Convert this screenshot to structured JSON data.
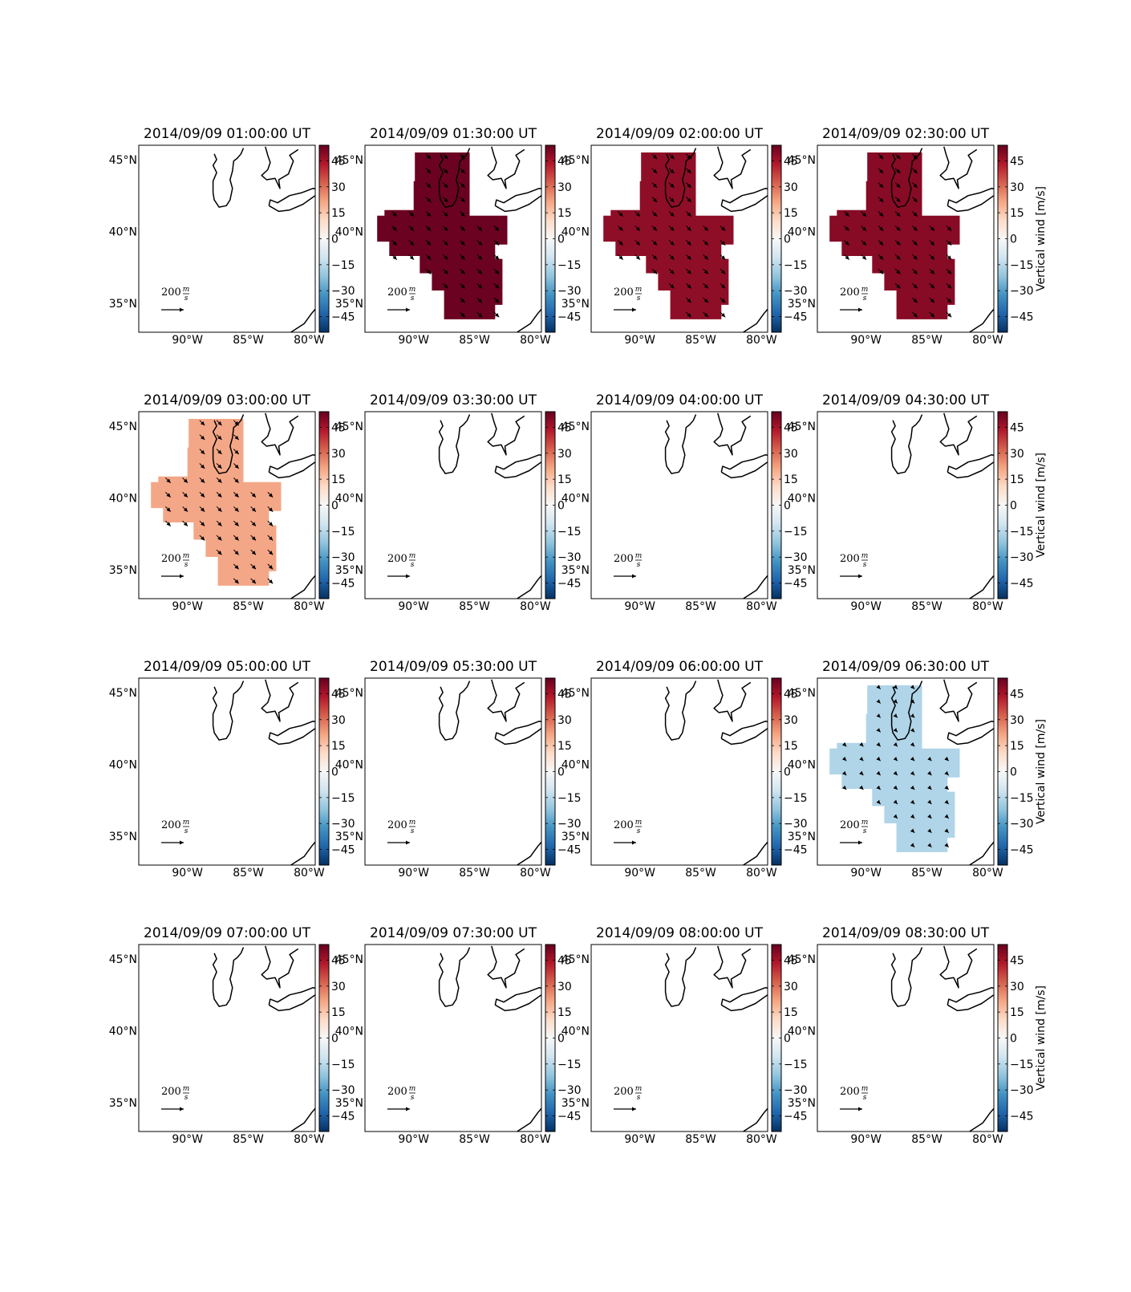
{
  "chart_data": {
    "type": "heatmap",
    "figure_title": "",
    "grid": false,
    "xlim": [
      -94,
      -79.5
    ],
    "ylim": [
      33.0,
      46.0
    ],
    "x_ticks": [
      -90,
      -85,
      -80
    ],
    "x_tick_labels": [
      "90°W",
      "85°W",
      "80°W"
    ],
    "y_ticks": [
      35,
      40,
      45
    ],
    "y_tick_labels": [
      "35°N",
      "40°N",
      "45°N"
    ],
    "colorbar": {
      "label": "Vertical wind [m/s]",
      "range": [
        -54,
        54
      ],
      "ticks": [
        -45,
        -30,
        -15,
        0,
        15,
        30,
        45
      ],
      "tick_labels": [
        "−45",
        "−30",
        "−15",
        "0",
        "15",
        "30",
        "45"
      ],
      "colormap": [
        "#053061",
        "#2166ac",
        "#4393c3",
        "#92c5de",
        "#d1e5f0",
        "#f7f7f7",
        "#fddbc7",
        "#f4a582",
        "#d6604d",
        "#b2182b",
        "#67001f"
      ]
    },
    "quiver_key": {
      "value": 200,
      "unit": "m/s",
      "label_number": "200",
      "label_num": "m",
      "label_den": "s"
    },
    "panels": [
      {
        "title": "2014/09/09 01:00:00 UT",
        "active": false,
        "vertical_wind": null,
        "color": null
      },
      {
        "title": "2014/09/09 01:30:00 UT",
        "active": true,
        "vertical_wind": 52,
        "color": "#6b0222"
      },
      {
        "title": "2014/09/09 02:00:00 UT",
        "active": true,
        "vertical_wind": 44,
        "color": "#8f0e27"
      },
      {
        "title": "2014/09/09 02:30:00 UT",
        "active": true,
        "vertical_wind": 47,
        "color": "#870b25"
      },
      {
        "title": "2014/09/09 03:00:00 UT",
        "active": true,
        "vertical_wind": 21,
        "color": "#f4a787"
      },
      {
        "title": "2014/09/09 03:30:00 UT",
        "active": false,
        "vertical_wind": null,
        "color": null
      },
      {
        "title": "2014/09/09 04:00:00 UT",
        "active": false,
        "vertical_wind": null,
        "color": null
      },
      {
        "title": "2014/09/09 04:30:00 UT",
        "active": false,
        "vertical_wind": null,
        "color": null
      },
      {
        "title": "2014/09/09 05:00:00 UT",
        "active": false,
        "vertical_wind": null,
        "color": null
      },
      {
        "title": "2014/09/09 05:30:00 UT",
        "active": false,
        "vertical_wind": null,
        "color": null
      },
      {
        "title": "2014/09/09 06:00:00 UT",
        "active": false,
        "vertical_wind": null,
        "color": null
      },
      {
        "title": "2014/09/09 06:30:00 UT",
        "active": true,
        "vertical_wind": -12,
        "color": "#b0d4e8"
      },
      {
        "title": "2014/09/09 07:00:00 UT",
        "active": false,
        "vertical_wind": null,
        "color": null
      },
      {
        "title": "2014/09/09 07:30:00 UT",
        "active": false,
        "vertical_wind": null,
        "color": null
      },
      {
        "title": "2014/09/09 08:00:00 UT",
        "active": false,
        "vertical_wind": null,
        "color": null
      },
      {
        "title": "2014/09/09 08:30:00 UT",
        "active": false,
        "vertical_wind": null,
        "color": null
      }
    ],
    "coverage_region_deg": [
      [
        [
          -89.9,
          45.5
        ],
        [
          -85.4,
          45.5
        ],
        [
          -85.4,
          41.1
        ],
        [
          -82.3,
          41.1
        ],
        [
          -82.3,
          39.1
        ],
        [
          -83.3,
          39.1
        ],
        [
          -83.3,
          38.1
        ],
        [
          -82.7,
          38.1
        ],
        [
          -82.7,
          34.9
        ],
        [
          -83.3,
          34.9
        ],
        [
          -83.3,
          33.9
        ],
        [
          -87.5,
          33.9
        ],
        [
          -87.5,
          35.9
        ],
        [
          -88.5,
          35.9
        ],
        [
          -88.5,
          37.1
        ],
        [
          -89.5,
          37.1
        ],
        [
          -89.5,
          38.3
        ],
        [
          -92.0,
          38.3
        ],
        [
          -92.0,
          39.3
        ],
        [
          -93.0,
          39.3
        ],
        [
          -93.0,
          41.1
        ],
        [
          -92.4,
          41.1
        ],
        [
          -92.4,
          41.5
        ],
        [
          -90.0,
          41.5
        ],
        [
          -90.0,
          43.5
        ],
        [
          -89.9,
          43.5
        ]
      ]
    ],
    "vectors": {
      "direction_deg": 135,
      "grid_start": [
        -93.2,
        34.4
      ],
      "grid_step": [
        1.4,
        1.0
      ]
    }
  }
}
